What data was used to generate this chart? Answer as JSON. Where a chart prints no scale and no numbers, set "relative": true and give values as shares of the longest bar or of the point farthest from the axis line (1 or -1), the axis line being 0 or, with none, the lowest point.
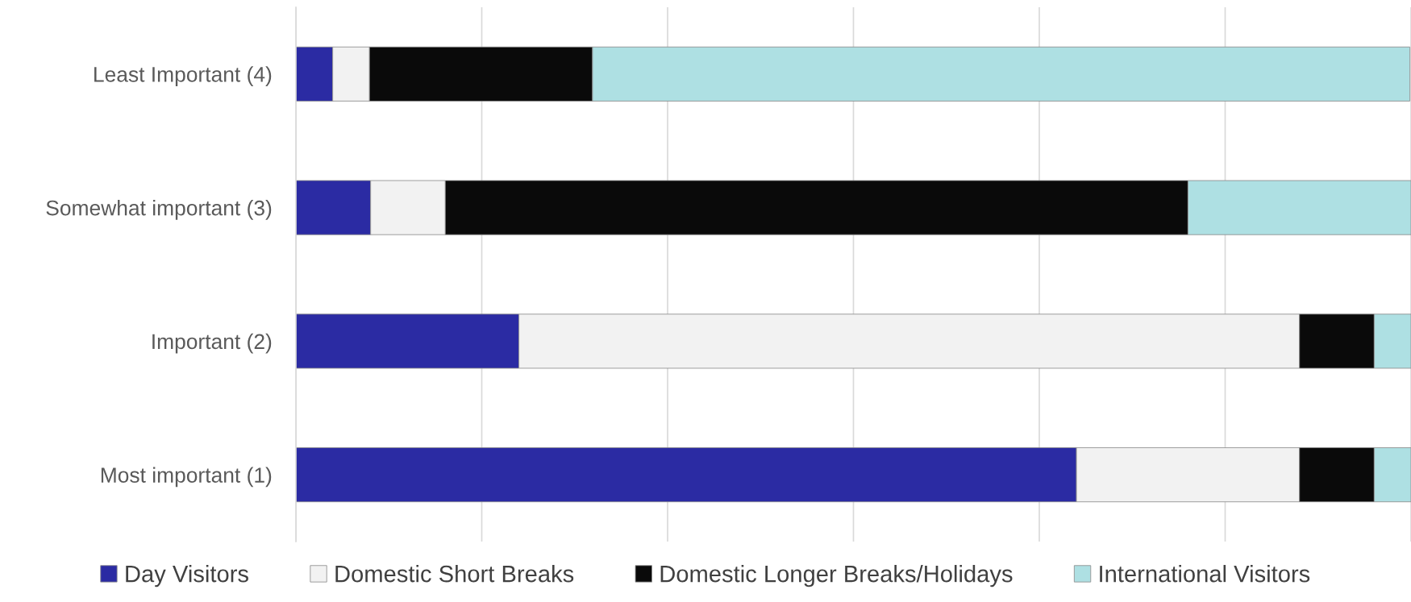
{
  "chart_data": {
    "type": "bar",
    "orientation": "horizontal",
    "stacked": true,
    "relative": true,
    "categories": [
      "Least Important (4)",
      "Somewhat important (3)",
      "Important (2)",
      "Most important (1)"
    ],
    "series": [
      {
        "name": "Day Visitors",
        "color": "#2b2ba3",
        "values": [
          0.033,
          0.067,
          0.2,
          0.7
        ]
      },
      {
        "name": "Domestic Short Breaks",
        "color": "#f2f2f2",
        "values": [
          0.033,
          0.067,
          0.7,
          0.2
        ]
      },
      {
        "name": "Domestic Longer Breaks/Holidays",
        "color": "#0a0a0a",
        "values": [
          0.2,
          0.666,
          0.067,
          0.067
        ]
      },
      {
        "name": "International Visitors",
        "color": "#aee0e3",
        "values": [
          0.733,
          0.2,
          0.033,
          0.033
        ]
      }
    ],
    "grid": "x",
    "legend": "bottom"
  }
}
